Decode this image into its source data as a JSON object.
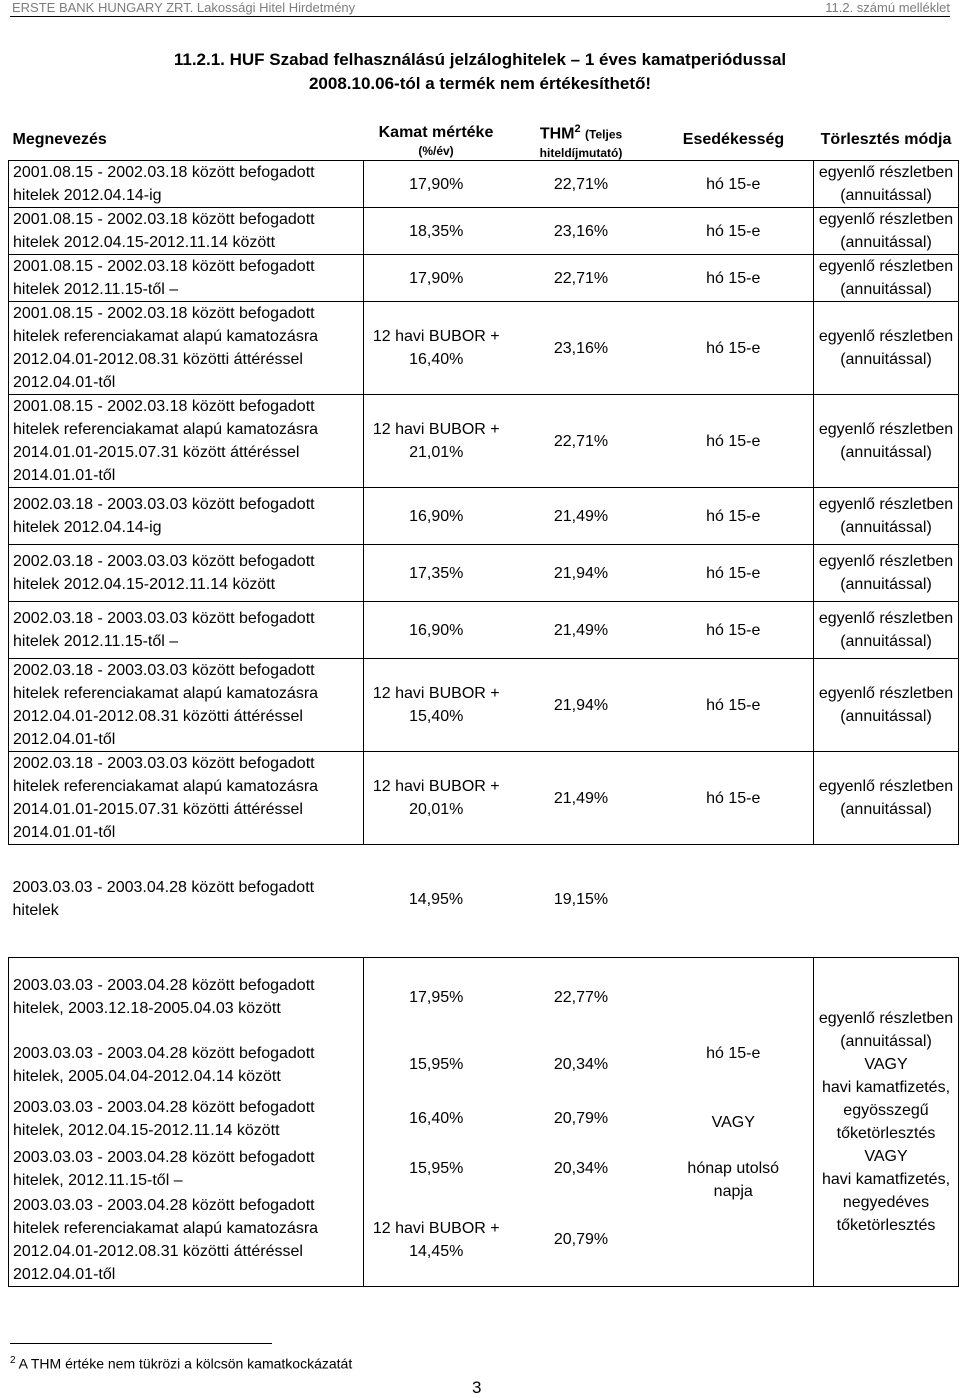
{
  "header": {
    "left": "ERSTE BANK HUNGARY ZRT. Lakossági Hitel Hirdetmény",
    "right": "11.2. számú melléklet"
  },
  "title_line1": "11.2.1. HUF Szabad felhasználású jelzáloghitelek – 1 éves kamatperiódussal",
  "title_line2": "2008.10.06-tól a termék nem értékesíthető!",
  "columns": {
    "name": "Megnevezés",
    "rate": "Kamat mértéke",
    "rate_sub": "(%/év)",
    "thm": "THM",
    "thm_sup": "2",
    "thm_sub1": "(Teljes",
    "thm_sub2": "hiteldíjmutató)",
    "due": "Esedékesség",
    "repay": "Törlesztés módja"
  },
  "rows": [
    {
      "name": [
        "2001.08.15 - 2002.03.18 között befogadott",
        "hitelek 2012.04.14-ig"
      ],
      "rate": [
        "17,90%"
      ],
      "thm": "22,71%",
      "due": "hó 15-e",
      "repay": [
        "egyenlő részletben",
        "(annuitással)"
      ]
    },
    {
      "name": [
        "2001.08.15 - 2002.03.18 között befogadott",
        "hitelek 2012.04.15-2012.11.14 között"
      ],
      "rate": [
        "18,35%"
      ],
      "thm": "23,16%",
      "due": "hó 15-e",
      "repay": [
        "egyenlő részletben",
        "(annuitással)"
      ]
    },
    {
      "name": [
        "2001.08.15 - 2002.03.18 között befogadott",
        "hitelek 2012.11.15-től –"
      ],
      "rate": [
        "17,90%"
      ],
      "thm": "22,71%",
      "due": "hó 15-e",
      "repay": [
        "egyenlő részletben",
        "(annuitással)"
      ]
    },
    {
      "name": [
        "2001.08.15 - 2002.03.18 között befogadott",
        "hitelek referenciakamat alapú kamatozásra",
        "2012.04.01-2012.08.31 közötti áttéréssel",
        "2012.04.01-től"
      ],
      "rate": [
        "12 havi BUBOR +",
        "16,40%"
      ],
      "thm": "23,16%",
      "due": "hó 15-e",
      "repay": [
        "egyenlő részletben",
        "(annuitással)"
      ]
    },
    {
      "name": [
        "2001.08.15 - 2002.03.18 között befogadott",
        "hitelek referenciakamat alapú kamatozásra",
        "2014.01.01-2015.07.31 között áttéréssel",
        "2014.01.01-től"
      ],
      "rate": [
        "12 havi BUBOR +",
        "21,01%"
      ],
      "thm": "22,71%",
      "due": "hó 15-e",
      "repay": [
        "egyenlő részletben",
        "(annuitással)"
      ]
    },
    {
      "name": [
        "2002.03.18 - 2003.03.03 között befogadott",
        "hitelek 2012.04.14-ig"
      ],
      "rate": [
        "16,90%"
      ],
      "thm": "21,49%",
      "due": "hó 15-e",
      "repay": [
        "egyenlő részletben",
        "(annuitással)"
      ]
    },
    {
      "name": [
        "2002.03.18 - 2003.03.03 között befogadott",
        "hitelek 2012.04.15-2012.11.14 között"
      ],
      "rate": [
        "17,35%"
      ],
      "thm": "21,94%",
      "due": "hó 15-e",
      "repay": [
        "egyenlő részletben",
        "(annuitással)"
      ]
    },
    {
      "name": [
        "2002.03.18 - 2003.03.03 között befogadott",
        "hitelek 2012.11.15-től –"
      ],
      "rate": [
        "16,90%"
      ],
      "thm": "21,49%",
      "due": "hó 15-e",
      "repay": [
        "egyenlő részletben",
        "(annuitással)"
      ]
    },
    {
      "name": [
        "2002.03.18 - 2003.03.03 között befogadott",
        "hitelek referenciakamat alapú kamatozásra",
        "2012.04.01-2012.08.31 közötti áttéréssel",
        "2012.04.01-től"
      ],
      "rate": [
        "12 havi BUBOR +",
        "15,40%"
      ],
      "thm": "21,94%",
      "due": "hó 15-e",
      "repay": [
        "egyenlő részletben",
        "(annuitással)"
      ]
    },
    {
      "name": [
        "2002.03.18 - 2003.03.03 között befogadott",
        "hitelek referenciakamat alapú kamatozásra",
        "2014.01.01-2015.07.31 közötti áttéréssel",
        "2014.01.01-től"
      ],
      "rate": [
        "12 havi BUBOR +",
        "20,01%"
      ],
      "thm": "21,49%",
      "due": "hó 15-e",
      "repay": [
        "egyenlő részletben",
        "(annuitással)"
      ]
    },
    {
      "name": [
        "2003.03.03 - 2003.04.28 között befogadott",
        "hitelek"
      ],
      "rate": [
        "14,95%"
      ],
      "thm": "19,15%",
      "due": "",
      "repay": []
    }
  ],
  "group": {
    "rows": [
      {
        "name": [
          "2003.03.03 - 2003.04.28 között befogadott",
          "hitelek, 2003.12.18-2005.04.03 között"
        ],
        "rate": [
          "17,95%"
        ],
        "thm": "22,77%"
      },
      {
        "name": [
          "2003.03.03 - 2003.04.28 között befogadott",
          "hitelek, 2005.04.04-2012.04.14 között"
        ],
        "rate": [
          "15,95%"
        ],
        "thm": "20,34%"
      },
      {
        "name": [
          "2003.03.03 - 2003.04.28 között befogadott",
          "hitelek, 2012.04.15-2012.11.14 között"
        ],
        "rate": [
          "16,40%"
        ],
        "thm": "20,79%"
      },
      {
        "name": [
          "2003.03.03 - 2003.04.28 között befogadott",
          "hitelek, 2012.11.15-től –"
        ],
        "rate": [
          "15,95%"
        ],
        "thm": "20,34%"
      },
      {
        "name": [
          "2003.03.03 - 2003.04.28 között befogadott",
          "hitelek referenciakamat alapú kamatozásra",
          "2012.04.01-2012.08.31 közötti áttéréssel",
          "2012.04.01-től"
        ],
        "rate": [
          "12 havi BUBOR +",
          "14,45%"
        ],
        "thm": "20,79%"
      }
    ],
    "due": [
      "hó 15-e",
      "",
      "",
      "VAGY",
      "",
      "hónap utolsó",
      "napja"
    ],
    "repay": [
      "egyenlő részletben",
      "(annuitással)",
      "VAGY",
      "havi kamatfizetés,",
      "egyösszegű",
      "tőketörlesztés",
      "VAGY",
      "havi kamatfizetés,",
      "negyedéves",
      "tőketörlesztés"
    ]
  },
  "footnote": {
    "sup": "2",
    "text": " A THM értéke nem tükrözi a kölcsön kamatkockázatát"
  },
  "page_number": "3"
}
